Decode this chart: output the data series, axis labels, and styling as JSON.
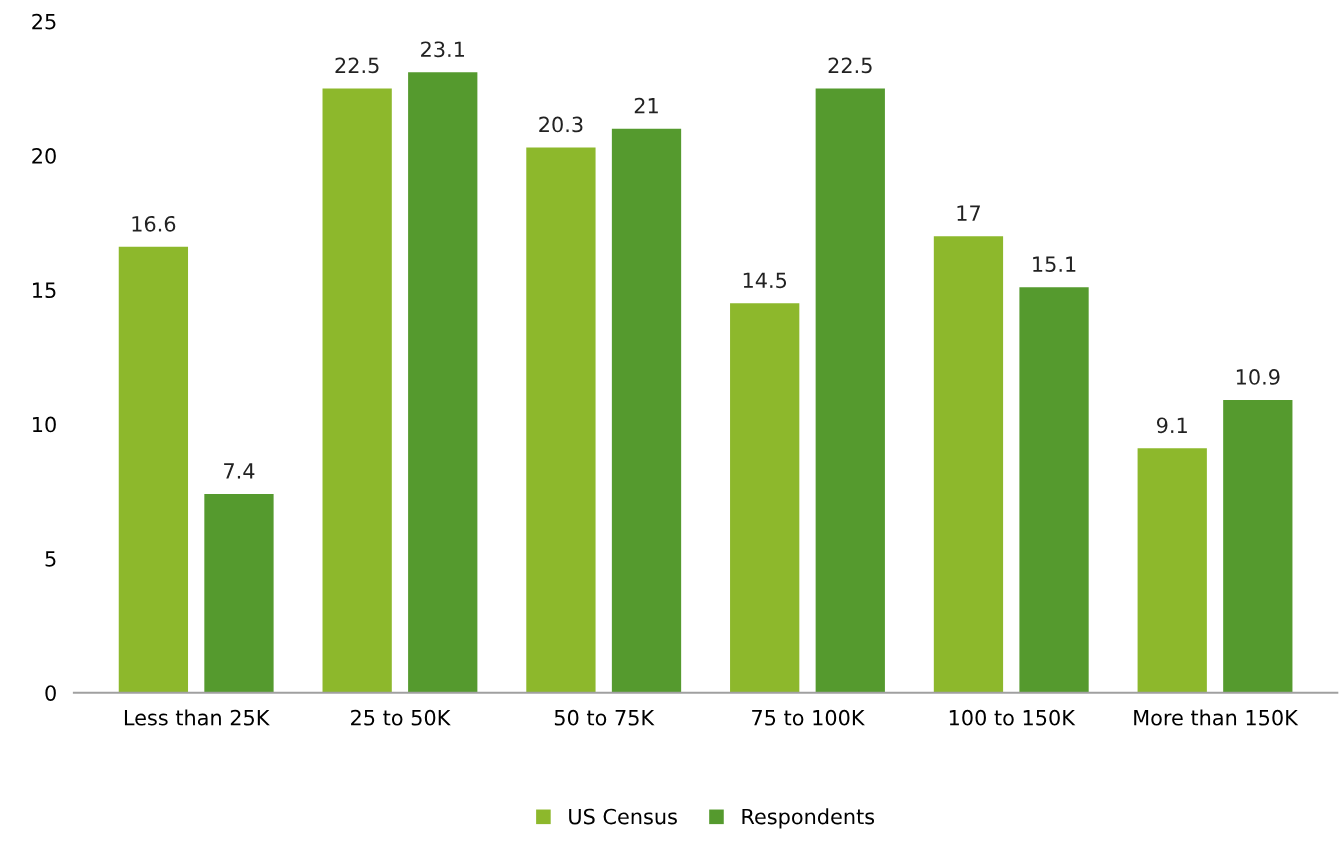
{
  "chart_data": {
    "type": "bar",
    "categories": [
      "Less than 25K",
      "25 to 50K",
      "50 to 75K",
      "75 to 100K",
      "100 to 150K",
      "More than 150K"
    ],
    "series": [
      {
        "name": "US Census",
        "color": "#8db82c",
        "values": [
          16.6,
          22.5,
          20.3,
          14.5,
          17,
          9.1
        ]
      },
      {
        "name": "Respondents",
        "color": "#559a2e",
        "values": [
          7.4,
          23.1,
          21,
          22.5,
          15.1,
          10.9
        ]
      }
    ],
    "ylim": [
      0,
      25
    ],
    "yticks": [
      0,
      5,
      10,
      15,
      20,
      25
    ],
    "data_labels": true,
    "grid": false,
    "legend": "bottom"
  }
}
